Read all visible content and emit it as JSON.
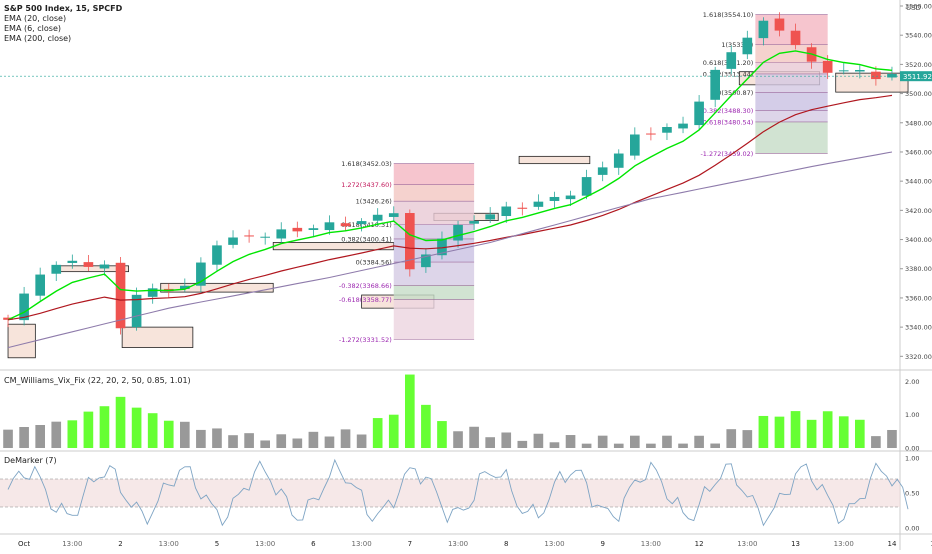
{
  "header": {
    "title": "S&P 500 Index, 15, SPCFD",
    "indicators": [
      "EMA (20, close)",
      "EMA (6, close)",
      "EMA (200, close)"
    ],
    "currency": "USD"
  },
  "last_price": "3511.92",
  "vix_label": "CM_Williams_Vix_Fix (22, 20, 2, 50, 0.85, 1.01)",
  "demarker_label": "DeMarker (7)",
  "colors": {
    "up": "#26a69a",
    "down": "#ef5350",
    "ema6": "#00e600",
    "ema20": "#b0171f",
    "ema200": "#8e7bab",
    "fib_purple": "#9c27b0",
    "vix_green": "#66ff33",
    "vix_gray": "#999999",
    "demarker": "#7ea4c4",
    "zone": "#f3d6c8"
  },
  "chart_data": [
    {
      "type": "candlestick",
      "title": "S&P 500 Index, 15, SPCFD",
      "ylim": [
        3312,
        3560
      ],
      "yticks": [
        3320,
        3340,
        3360,
        3380,
        3400,
        3420,
        3440,
        3460,
        3480,
        3500,
        3520,
        3540,
        3560
      ],
      "xticks": [
        "Oct",
        "13:00",
        "2",
        "13:00",
        "5",
        "13:00",
        "6",
        "13:00",
        "7",
        "13:00",
        "8",
        "13:00",
        "9",
        "13:00",
        "12",
        "13:00",
        "13",
        "13:00",
        "14",
        "13:00"
      ],
      "xtick_index": [
        1,
        4,
        7,
        10,
        13,
        16,
        19,
        22,
        25,
        28,
        31,
        34,
        37,
        40,
        43,
        46,
        49,
        52,
        55,
        58
      ],
      "key_closes": {
        "index": [
          0,
          2,
          4,
          6,
          7,
          8,
          11,
          13,
          15,
          17,
          20,
          22,
          24,
          25,
          27,
          29,
          31,
          33,
          35,
          37,
          39,
          41,
          42,
          44,
          45,
          46,
          47,
          48,
          49,
          50,
          51,
          53,
          54
        ],
        "close": [
          3345,
          3378,
          3385,
          3381,
          3340,
          3363,
          3368,
          3398,
          3402,
          3405,
          3410,
          3412,
          3420,
          3378,
          3402,
          3414,
          3421,
          3425,
          3432,
          3450,
          3470,
          3477,
          3478,
          3515,
          3528,
          3540,
          3548,
          3544,
          3534,
          3520,
          3516,
          3515,
          3511.92
        ]
      },
      "ema200_values": {
        "index": [
          0,
          10,
          20,
          30,
          40,
          50,
          55
        ],
        "value": [
          3326,
          3353,
          3374,
          3398,
          3428,
          3450,
          3460
        ]
      },
      "fib_levels_left": [
        {
          "label": "1.618(3452.03)",
          "value": 3452.03
        },
        {
          "label": "1.272(3437.60)",
          "value": 3437.6
        },
        {
          "label": "1(3426.26)",
          "value": 3426.26
        },
        {
          "label": "0.618(3410.31)",
          "value": 3410.31
        },
        {
          "label": "0.382(3400.41)",
          "value": 3400.41
        },
        {
          "label": "0(3384.56)",
          "value": 3384.56
        },
        {
          "label": "-0.382(3368.66)",
          "value": 3368.66
        },
        {
          "label": "-0.618(3358.77)",
          "value": 3358.77
        },
        {
          "label": "-1.272(3331.52)",
          "value": 3331.52
        }
      ],
      "fib_levels_right": [
        {
          "label": "1.618(3554.10)",
          "value": 3554.1
        },
        {
          "label": "1(3533.7)",
          "value": 3533.7
        },
        {
          "label": "0.618(3521.20)",
          "value": 3521.2
        },
        {
          "label": "0.382(3513.44)",
          "value": 3513.44
        },
        {
          "label": "0(3500.87)",
          "value": 3500.87
        },
        {
          "label": "-0.382(3488.30)",
          "value": 3488.3
        },
        {
          "label": "-0.618(3480.54)",
          "value": 3480.54
        },
        {
          "label": "-1.272(3459.02)",
          "value": 3459.02
        }
      ]
    },
    {
      "type": "bar",
      "title": "CM_Williams_Vix_Fix (22, 20, 2, 50, 0.85, 1.01)",
      "ylim": [
        0,
        2.1
      ],
      "yticks": [
        "0.00",
        "1.00",
        "2.00"
      ],
      "key_values": {
        "index": [
          0,
          4,
          7,
          9,
          12,
          16,
          22,
          24,
          25,
          27,
          31,
          36,
          44,
          48,
          49,
          50,
          52,
          54
        ],
        "value": [
          0.55,
          0.85,
          1.5,
          1.0,
          0.6,
          0.3,
          0.5,
          1.1,
          2.1,
          0.7,
          0.35,
          0.25,
          0.25,
          1.05,
          1.0,
          0.95,
          1.05,
          0.45
        ]
      }
    },
    {
      "type": "line",
      "title": "DeMarker (7)",
      "ylim": [
        0,
        1
      ],
      "yticks": [
        "0.00",
        "0.50",
        "1.00"
      ],
      "band": [
        0.3,
        0.7
      ]
    }
  ]
}
